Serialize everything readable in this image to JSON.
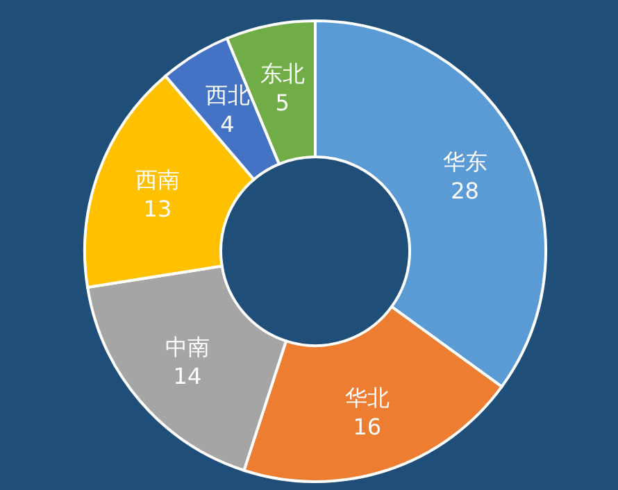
{
  "chart_data": {
    "type": "donut",
    "categories": [
      "华东",
      "华北",
      "中南",
      "西南",
      "西北",
      "东北"
    ],
    "values": [
      28,
      16,
      14,
      13,
      4,
      5
    ],
    "colors": [
      "#5b9bd5",
      "#ed7d31",
      "#a5a5a5",
      "#ffc000",
      "#4472c4",
      "#70ad47"
    ],
    "data_labels": true,
    "legend": false
  }
}
